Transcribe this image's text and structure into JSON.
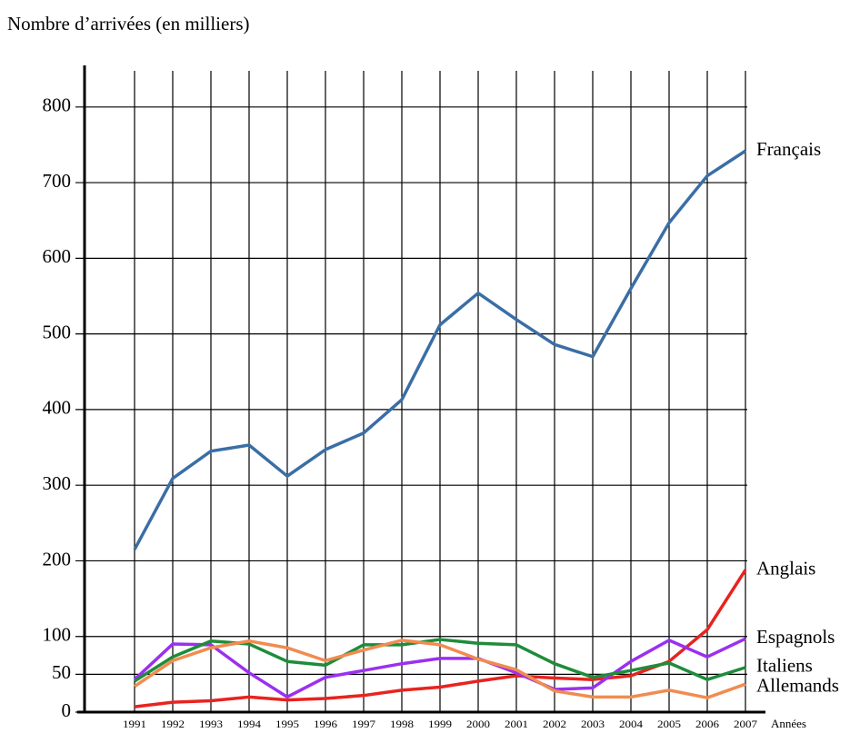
{
  "chart_data": {
    "type": "line",
    "y_label": "Nombre d’arrivées (en milliers)",
    "x_label": "Années",
    "categories": [
      "1991",
      "1992",
      "1993",
      "1994",
      "1995",
      "1996",
      "1997",
      "1998",
      "1999",
      "2000",
      "2001",
      "2002",
      "2003",
      "2004",
      "2005",
      "2006",
      "2007"
    ],
    "series": [
      {
        "name": "Français",
        "color": "#3a6ea5",
        "values": [
          215,
          309,
          345,
          353,
          312,
          347,
          369,
          413,
          512,
          554,
          519,
          486,
          470,
          560,
          647,
          709,
          742
        ]
      },
      {
        "name": "Anglais",
        "color": "#e8231f",
        "values": [
          7,
          13,
          15,
          20,
          16,
          18,
          22,
          29,
          33,
          41,
          48,
          45,
          43,
          48,
          67,
          109,
          188
        ]
      },
      {
        "name": "Espagnols",
        "color": "#9b30f0",
        "values": [
          43,
          90,
          89,
          52,
          20,
          46,
          55,
          64,
          71,
          71,
          52,
          30,
          32,
          67,
          95,
          73,
          97
        ]
      },
      {
        "name": "Italiens",
        "color": "#1e8c3a",
        "values": [
          41,
          73,
          94,
          90,
          67,
          62,
          89,
          89,
          96,
          91,
          89,
          64,
          46,
          55,
          65,
          43,
          59
        ]
      },
      {
        "name": "Allemands",
        "color": "#f08c50",
        "values": [
          34,
          68,
          85,
          94,
          85,
          68,
          82,
          95,
          89,
          70,
          56,
          28,
          20,
          20,
          29,
          19,
          37
        ]
      }
    ],
    "ylim": [
      0,
      855
    ],
    "yticks": [
      0,
      50,
      100,
      200,
      300,
      400,
      500,
      600,
      700,
      800
    ],
    "grid": true
  }
}
